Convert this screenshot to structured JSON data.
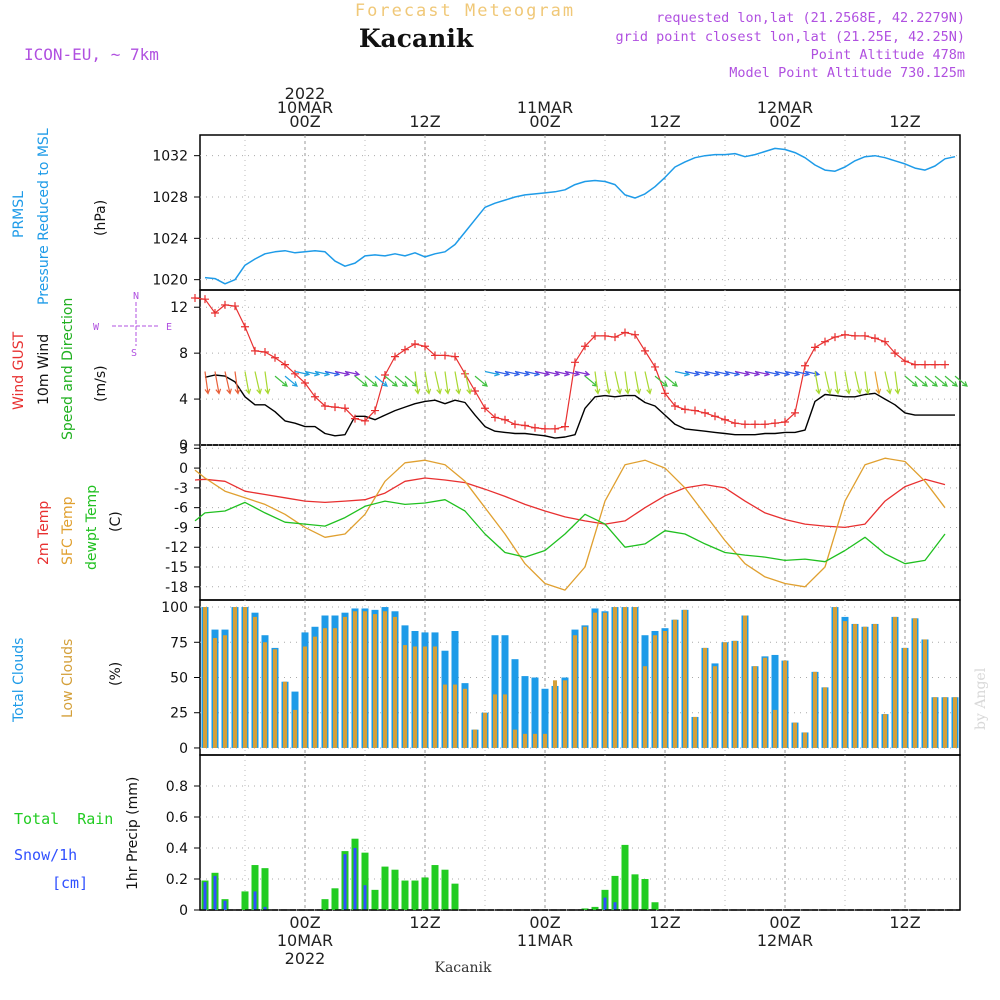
{
  "header": {
    "top_title": "Forecast Meteogram",
    "station": "Kacanik",
    "model": "ICON-EU, ~ 7km",
    "requested": "requested lon,lat (21.2568E, 42.2279N)",
    "grid_point": "grid point closest lon,lat (21.25E, 42.25N)",
    "point_alt": "Point Altitude 478m",
    "model_alt": "Model Point Altitude 730.125m",
    "footer_station": "Kacanik",
    "credit": "by Angel"
  },
  "time_axis": {
    "labels": [
      {
        "t": 0,
        "lines": [
          "2022",
          "10MAR",
          "00Z"
        ]
      },
      {
        "t": 12,
        "lines": [
          "12Z"
        ]
      },
      {
        "t": 24,
        "lines": [
          "11MAR",
          "00Z"
        ]
      },
      {
        "t": 36,
        "lines": [
          "12Z"
        ]
      },
      {
        "t": 48,
        "lines": [
          "12MAR",
          "00Z"
        ]
      },
      {
        "t": 60,
        "lines": [
          "12Z"
        ]
      }
    ],
    "bottom_labels": [
      {
        "t": 0,
        "lines": [
          "00Z",
          "10MAR",
          "2022"
        ]
      },
      {
        "t": 12,
        "lines": [
          "12Z"
        ]
      },
      {
        "t": 24,
        "lines": [
          "00Z",
          "11MAR"
        ]
      },
      {
        "t": 36,
        "lines": [
          "12Z"
        ]
      },
      {
        "t": 48,
        "lines": [
          "00Z",
          "12MAR"
        ]
      },
      {
        "t": 60,
        "lines": [
          "12Z"
        ]
      }
    ]
  },
  "panels": {
    "pressure": {
      "labels": [
        "PRMSL",
        "Pressure Reduced to MSL"
      ],
      "unit": "(hPa)",
      "ticks": [
        1020,
        1024,
        1028,
        1032
      ]
    },
    "wind": {
      "labels": [
        "Wind GUST",
        "10m Wind",
        "Speed and Direction"
      ],
      "unit": "(m/s)",
      "ticks": [
        0,
        4,
        8,
        12
      ],
      "compass": {
        "n": "N",
        "s": "S",
        "w": "W",
        "e": "E"
      }
    },
    "temp": {
      "labels": [
        "2m Temp",
        "SFC Temp",
        "dewpt Temp"
      ],
      "unit": "(C)",
      "ticks": [
        3,
        0,
        -3,
        -6,
        -9,
        -12,
        -15,
        -18
      ]
    },
    "cloud": {
      "labels": [
        "Total Clouds",
        "Low Clouds"
      ],
      "unit": "(%)",
      "ticks": [
        0,
        25,
        50,
        75,
        100
      ]
    },
    "precip": {
      "labels": [
        "Total  Rain",
        "Snow/1h",
        "[cm]"
      ],
      "unit": "1hr Precip (mm)",
      "ticks": [
        0,
        0.2,
        0.4,
        0.6,
        0.8
      ]
    }
  },
  "colors": {
    "pressure": "#1e9be8",
    "gust": "#e83030",
    "wind": "#000000",
    "temp2m": "#e83030",
    "sfc": "#e0a030",
    "dew": "#20c020",
    "total_cloud": "#1e9be8",
    "low_cloud": "#d4a03a",
    "rain": "#22cc22",
    "snow": "#3050ff",
    "purple": "#b050e0",
    "grid": "#888888"
  },
  "chart_data": {
    "type": "meteogram",
    "time_start_hours_before_10MAR00Z": -10,
    "time_end_hours_after_10MAR00Z": 65,
    "pressure_hpa": {
      "t": [
        -10,
        -9,
        -8,
        -7,
        -6,
        -5,
        -4,
        -3,
        -2,
        -1,
        0,
        1,
        2,
        3,
        4,
        5,
        6,
        7,
        8,
        9,
        10,
        11,
        12,
        13,
        14,
        15,
        16,
        17,
        18,
        19,
        20,
        21,
        22,
        23,
        24,
        25,
        26,
        27,
        28,
        29,
        30,
        31,
        32,
        33,
        34,
        35,
        36,
        37,
        38,
        39,
        40,
        41,
        42,
        43,
        44,
        45,
        46,
        47,
        48,
        49,
        50,
        51,
        52,
        53,
        54,
        55,
        56,
        57,
        58,
        59,
        60,
        61,
        62,
        63,
        64,
        65
      ],
      "v": [
        1020.2,
        1020.1,
        1019.6,
        1020,
        1021.4,
        1022,
        1022.5,
        1022.7,
        1022.8,
        1022.6,
        1022.7,
        1022.8,
        1022.7,
        1021.8,
        1021.3,
        1021.6,
        1022.3,
        1022.4,
        1022.3,
        1022.5,
        1022.3,
        1022.6,
        1022.2,
        1022.5,
        1022.7,
        1023.4,
        1024.6,
        1025.8,
        1027,
        1027.4,
        1027.7,
        1028,
        1028.2,
        1028.3,
        1028.4,
        1028.5,
        1028.7,
        1029.2,
        1029.5,
        1029.6,
        1029.5,
        1029.2,
        1028.2,
        1027.9,
        1028.3,
        1029,
        1029.9,
        1030.9,
        1031.4,
        1031.8,
        1032,
        1032.1,
        1032.1,
        1032.2,
        1031.9,
        1032.1,
        1032.4,
        1032.7,
        1032.6,
        1032.3,
        1031.8,
        1031.1,
        1030.6,
        1030.5,
        1030.9,
        1031.5,
        1031.9,
        1032,
        1031.8,
        1031.5,
        1031.2,
        1030.8,
        1030.6,
        1031,
        1031.7,
        1031.9
      ]
    },
    "wind_gust_ms": {
      "t": [
        -11,
        -10,
        -9,
        -8,
        -7,
        -6,
        -5,
        -4,
        -3,
        -2,
        -1,
        0,
        1,
        2,
        3,
        4,
        5,
        6,
        7,
        8,
        9,
        10,
        11,
        12,
        13,
        14,
        15,
        16,
        17,
        18,
        19,
        20,
        21,
        22,
        23,
        24,
        25,
        26,
        27,
        28,
        29,
        30,
        31,
        32,
        33,
        34,
        35,
        36,
        37,
        38,
        39,
        40,
        41,
        42,
        43,
        44,
        45,
        46,
        47,
        48,
        49,
        50,
        51,
        52,
        53,
        54,
        55,
        56,
        57,
        58,
        59,
        60,
        61,
        62,
        63,
        64
      ],
      "v": [
        12.8,
        12.7,
        11.5,
        12.2,
        12.1,
        10.3,
        8.2,
        8.1,
        7.6,
        7.0,
        6.2,
        5.4,
        4.2,
        3.4,
        3.3,
        3.2,
        2.3,
        2.1,
        3.0,
        6.1,
        7.7,
        8.3,
        8.8,
        8.6,
        7.8,
        7.8,
        7.7,
        6.2,
        4.7,
        3.2,
        2.4,
        2.2,
        1.8,
        1.7,
        1.5,
        1.4,
        1.4,
        1.6,
        7.2,
        8.6,
        9.5,
        9.5,
        9.4,
        9.8,
        9.6,
        8.2,
        6.8,
        4.5,
        3.4,
        3.1,
        3.0,
        2.8,
        2.5,
        2.2,
        1.9,
        1.8,
        1.8,
        1.8,
        1.9,
        2.0,
        2.8,
        6.9,
        8.5,
        9.0,
        9.4,
        9.6,
        9.5,
        9.5,
        9.3,
        9.0,
        8.0,
        7.3,
        7.0,
        7.0,
        7.0,
        7.0
      ]
    },
    "wind_speed_ms": {
      "t": [
        -10,
        -9,
        -8,
        -7,
        -6,
        -5,
        -4,
        -3,
        -2,
        -1,
        0,
        1,
        2,
        3,
        4,
        5,
        6,
        7,
        8,
        9,
        10,
        11,
        12,
        13,
        14,
        15,
        16,
        17,
        18,
        19,
        20,
        21,
        22,
        23,
        24,
        25,
        26,
        27,
        28,
        29,
        30,
        31,
        32,
        33,
        34,
        35,
        36,
        37,
        38,
        39,
        40,
        41,
        42,
        43,
        44,
        45,
        46,
        47,
        48,
        49,
        50,
        51,
        52,
        53,
        54,
        55,
        56,
        57,
        58,
        59,
        60,
        61,
        62,
        63,
        64,
        65
      ],
      "v": [
        5.9,
        6.1,
        6.0,
        5.5,
        4.2,
        3.5,
        3.5,
        2.9,
        2.1,
        1.9,
        1.6,
        1.6,
        1.0,
        0.8,
        0.9,
        2.5,
        2.5,
        2.2,
        2.6,
        3.0,
        3.3,
        3.6,
        3.8,
        3.9,
        3.6,
        3.9,
        3.7,
        2.6,
        1.6,
        1.2,
        1.1,
        1.0,
        1.0,
        0.9,
        0.8,
        0.6,
        0.7,
        0.9,
        3.2,
        4.2,
        4.3,
        4.2,
        4.3,
        4.3,
        3.7,
        3.4,
        2.6,
        1.8,
        1.4,
        1.3,
        1.2,
        1.1,
        1.0,
        0.9,
        0.9,
        0.9,
        1.0,
        1.0,
        1.1,
        1.1,
        1.3,
        3.8,
        4.4,
        4.3,
        4.2,
        4.2,
        4.4,
        4.5,
        4.0,
        3.5,
        2.8,
        2.6,
        2.6,
        2.6,
        2.6,
        2.6
      ]
    },
    "temp_2m_c": {
      "t": [
        -11,
        -10,
        -8,
        -6,
        -4,
        -2,
        0,
        2,
        4,
        6,
        8,
        10,
        12,
        14,
        16,
        18,
        20,
        22,
        24,
        26,
        28,
        30,
        32,
        34,
        36,
        38,
        40,
        42,
        44,
        46,
        48,
        50,
        52,
        54,
        56,
        58,
        60,
        62,
        64
      ],
      "v": [
        -1.8,
        -1.7,
        -2.0,
        -3.5,
        -4.0,
        -4.5,
        -5.0,
        -5.2,
        -5.0,
        -4.8,
        -3.8,
        -2.0,
        -1.5,
        -1.8,
        -2.2,
        -3.2,
        -4.3,
        -5.5,
        -6.5,
        -7.4,
        -8.0,
        -8.5,
        -8.0,
        -6.0,
        -4.2,
        -3.0,
        -2.5,
        -3.0,
        -5.0,
        -6.8,
        -7.8,
        -8.5,
        -8.8,
        -9.0,
        -8.5,
        -5.0,
        -2.8,
        -1.7,
        -2.5
      ]
    },
    "temp_sfc_c": {
      "t": [
        -11,
        -10,
        -8,
        -6,
        -4,
        -2,
        0,
        2,
        4,
        6,
        8,
        10,
        12,
        14,
        16,
        18,
        20,
        22,
        24,
        26,
        28,
        30,
        32,
        34,
        36,
        38,
        40,
        42,
        44,
        46,
        48,
        50,
        52,
        54,
        56,
        58,
        60,
        62,
        64
      ],
      "v": [
        -0.3,
        -1.5,
        -3.5,
        -4.5,
        -5.5,
        -7.0,
        -9.0,
        -10.5,
        -10.0,
        -7.0,
        -2.0,
        0.8,
        1.2,
        0.5,
        -2.0,
        -6.0,
        -10.0,
        -14.5,
        -17.5,
        -18.5,
        -15.0,
        -5.0,
        0.5,
        1.2,
        0.0,
        -3.0,
        -7.0,
        -11.0,
        -14.5,
        -16.5,
        -17.5,
        -18.0,
        -15.0,
        -5.0,
        0.5,
        1.5,
        1.0,
        -2.0,
        -6.0
      ]
    },
    "temp_dew_c": {
      "t": [
        -11,
        -10,
        -8,
        -6,
        -4,
        -2,
        0,
        2,
        4,
        6,
        8,
        10,
        12,
        14,
        16,
        18,
        20,
        22,
        24,
        26,
        28,
        30,
        32,
        34,
        36,
        38,
        40,
        42,
        44,
        46,
        48,
        50,
        52,
        54,
        56,
        58,
        60,
        62,
        64
      ],
      "v": [
        -8.0,
        -6.8,
        -6.5,
        -5.2,
        -6.8,
        -8.2,
        -8.5,
        -8.8,
        -7.5,
        -5.8,
        -5.0,
        -5.5,
        -5.3,
        -4.8,
        -6.5,
        -10.0,
        -12.8,
        -13.5,
        -12.5,
        -10.0,
        -7.0,
        -8.5,
        -12.0,
        -11.5,
        -9.5,
        -10.0,
        -11.5,
        -12.8,
        -13.2,
        -13.5,
        -14.0,
        -13.8,
        -14.2,
        -12.5,
        -10.5,
        -13.0,
        -14.5,
        -14.0,
        -10.0
      ]
    },
    "total_cloud_pct": {
      "t": [
        -10,
        -9,
        -8,
        -7,
        -6,
        -5,
        -4,
        -3,
        -2,
        -1,
        0,
        1,
        2,
        3,
        4,
        5,
        6,
        7,
        8,
        9,
        10,
        11,
        12,
        13,
        14,
        15,
        16,
        17,
        18,
        19,
        20,
        21,
        22,
        23,
        24,
        25,
        26,
        27,
        28,
        29,
        30,
        31,
        32,
        33,
        34,
        35,
        36,
        37,
        38,
        39,
        40,
        41,
        42,
        43,
        44,
        45,
        46,
        47,
        48,
        49,
        50,
        51,
        52,
        53,
        54,
        55,
        56,
        57,
        58,
        59,
        60,
        61,
        62,
        63,
        64,
        65
      ],
      "v": [
        100,
        84,
        84,
        100,
        100,
        96,
        80,
        71,
        47,
        40,
        82,
        86,
        94,
        94,
        96,
        99,
        99,
        98,
        100,
        97,
        87,
        83,
        82,
        82,
        69,
        83,
        46,
        13,
        25,
        80,
        80,
        63,
        51,
        50,
        42,
        44,
        50,
        84,
        87,
        99,
        97,
        100,
        100,
        100,
        80,
        83,
        85,
        91,
        98,
        22,
        71,
        60,
        75,
        76,
        94,
        58,
        65,
        66,
        62,
        18,
        11,
        54,
        43,
        100,
        93,
        88,
        86,
        88,
        24,
        93,
        71,
        92,
        77,
        36,
        36,
        36
      ],
      "low_cloud": [
        100,
        78,
        80,
        100,
        100,
        93,
        75,
        70,
        47,
        27,
        72,
        79,
        85,
        85,
        93,
        97,
        97,
        95,
        97,
        93,
        73,
        72,
        72,
        72,
        45,
        45,
        42,
        13,
        25,
        38,
        38,
        13,
        10,
        10,
        10,
        48,
        48,
        80,
        86,
        96,
        96,
        100,
        100,
        100,
        58,
        80,
        83,
        91,
        98,
        22,
        71,
        58,
        75,
        76,
        94,
        58,
        64,
        27,
        62,
        18,
        11,
        54,
        43,
        100,
        90,
        88,
        86,
        88,
        24,
        93,
        71,
        92,
        77,
        36,
        36,
        36
      ]
    },
    "rain_mm": {
      "t": [
        -10,
        -9,
        -8,
        -6,
        -5,
        -4,
        2,
        3,
        4,
        5,
        6,
        7,
        8,
        9,
        10,
        11,
        12,
        13,
        14,
        15,
        16,
        28,
        29,
        30,
        31,
        32,
        33,
        34,
        35,
        36,
        37
      ],
      "v": [
        0.19,
        0.24,
        0.07,
        0.12,
        0.29,
        0.27,
        0.07,
        0.14,
        0.38,
        0.46,
        0.37,
        0.13,
        0.28,
        0.26,
        0.19,
        0.19,
        0.21,
        0.29,
        0.26,
        0.17,
        0,
        0.01,
        0.02,
        0.13,
        0.22,
        0.42,
        0.23,
        0.2,
        0.05,
        0,
        0
      ],
      "snow": [
        0.18,
        0.22,
        0.06,
        0,
        0.12,
        0.02,
        0,
        0,
        0.36,
        0.4,
        0.16,
        0,
        0,
        0,
        0,
        0,
        0,
        0,
        0,
        0,
        0,
        0,
        0,
        0.08,
        0.05,
        0,
        0,
        0,
        0,
        0,
        0
      ]
    }
  }
}
